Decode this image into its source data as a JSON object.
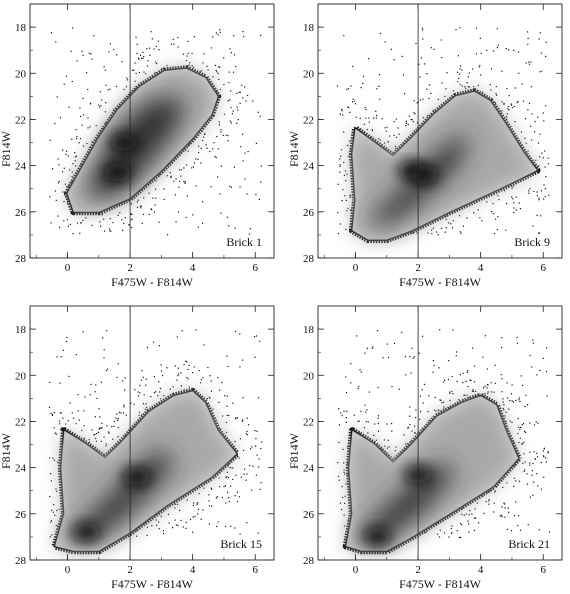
{
  "chart_data": [
    {
      "type": "scatter",
      "panel_label": "Brick 1",
      "xlabel": "F475W - F814W",
      "ylabel": "F814W",
      "xlim": [
        -1.2,
        6.6
      ],
      "ylim": [
        28,
        17
      ],
      "xticks": [
        "0",
        "2",
        "4",
        "6"
      ],
      "yticks": [
        "18",
        "20",
        "22",
        "24",
        "26",
        "28"
      ],
      "vline_x": 2.0,
      "density_shape": {
        "outline": [
          [
            0.2,
            26.0
          ],
          [
            0.0,
            25.2
          ],
          [
            0.5,
            24.0
          ],
          [
            1.0,
            22.8
          ],
          [
            1.6,
            21.6
          ],
          [
            2.3,
            20.6
          ],
          [
            3.1,
            19.9
          ],
          [
            3.8,
            19.8
          ],
          [
            4.4,
            20.2
          ],
          [
            4.8,
            21.0
          ],
          [
            4.6,
            21.8
          ],
          [
            4.0,
            22.8
          ],
          [
            3.0,
            24.2
          ],
          [
            2.0,
            25.4
          ],
          [
            1.0,
            26.0
          ]
        ],
        "core": [
          [
            0.6,
            25.2
          ],
          [
            1.0,
            24.0
          ],
          [
            1.6,
            22.5
          ],
          [
            2.4,
            21.4
          ],
          [
            3.2,
            21.0
          ],
          [
            3.8,
            21.3
          ],
          [
            3.4,
            22.5
          ],
          [
            2.4,
            24.2
          ],
          [
            1.4,
            25.4
          ]
        ],
        "hotspot": [
          [
            1.6,
            24.3
          ],
          [
            1.8,
            23.0
          ]
        ]
      }
    },
    {
      "type": "scatter",
      "panel_label": "Brick 9",
      "xlabel": "F475W - F814W",
      "ylabel": "F814W",
      "xlim": [
        -1.2,
        6.6
      ],
      "ylim": [
        28,
        17
      ],
      "xticks": [
        "0",
        "2",
        "4",
        "6"
      ],
      "yticks": [
        "18",
        "20",
        "22",
        "24",
        "26",
        "28"
      ],
      "vline_x": 2.0,
      "density_shape": {
        "outline": [
          [
            -0.1,
            26.8
          ],
          [
            0.0,
            25.5
          ],
          [
            -0.1,
            23.5
          ],
          [
            0.0,
            22.4
          ],
          [
            0.6,
            23.0
          ],
          [
            1.2,
            23.6
          ],
          [
            1.8,
            22.8
          ],
          [
            2.5,
            21.8
          ],
          [
            3.2,
            21.0
          ],
          [
            3.8,
            20.8
          ],
          [
            4.3,
            21.2
          ],
          [
            4.8,
            22.2
          ],
          [
            5.4,
            23.5
          ],
          [
            5.8,
            24.2
          ],
          [
            4.6,
            25.0
          ],
          [
            3.0,
            26.0
          ],
          [
            1.8,
            26.8
          ],
          [
            1.0,
            27.2
          ],
          [
            0.4,
            27.2
          ]
        ],
        "core": [
          [
            0.4,
            26.4
          ],
          [
            1.2,
            25.4
          ],
          [
            2.0,
            24.2
          ],
          [
            3.0,
            23.0
          ],
          [
            3.6,
            22.6
          ],
          [
            3.4,
            23.8
          ],
          [
            2.2,
            25.4
          ],
          [
            1.0,
            26.6
          ]
        ],
        "hotspot": [
          [
            1.8,
            24.2
          ],
          [
            2.2,
            24.4
          ]
        ]
      }
    },
    {
      "type": "scatter",
      "panel_label": "Brick 15",
      "xlabel": "F475W - F814W",
      "ylabel": "F814W",
      "xlim": [
        -1.2,
        6.6
      ],
      "ylim": [
        28,
        17
      ],
      "xticks": [
        "0",
        "2",
        "4",
        "6"
      ],
      "yticks": [
        "18",
        "20",
        "22",
        "24",
        "26",
        "28"
      ],
      "vline_x": 2.0,
      "density_shape": {
        "outline": [
          [
            -0.4,
            27.4
          ],
          [
            -0.1,
            26.0
          ],
          [
            -0.2,
            24.0
          ],
          [
            -0.1,
            22.4
          ],
          [
            0.6,
            23.0
          ],
          [
            1.2,
            23.6
          ],
          [
            1.8,
            22.8
          ],
          [
            2.6,
            21.6
          ],
          [
            3.4,
            20.9
          ],
          [
            4.0,
            20.7
          ],
          [
            4.4,
            21.2
          ],
          [
            4.8,
            22.4
          ],
          [
            5.4,
            23.4
          ],
          [
            4.6,
            24.4
          ],
          [
            3.2,
            25.6
          ],
          [
            2.0,
            26.8
          ],
          [
            1.0,
            27.6
          ],
          [
            0.2,
            27.6
          ]
        ],
        "core": [
          [
            0.0,
            27.2
          ],
          [
            0.6,
            26.2
          ],
          [
            1.4,
            25.2
          ],
          [
            2.2,
            24.0
          ],
          [
            3.0,
            23.2
          ],
          [
            3.4,
            23.8
          ],
          [
            2.4,
            25.4
          ],
          [
            1.2,
            26.8
          ]
        ],
        "hotspot": [
          [
            2.2,
            24.4
          ],
          [
            0.6,
            26.8
          ]
        ]
      }
    },
    {
      "type": "scatter",
      "panel_label": "Brick 21",
      "xlabel": "F475W - F814W",
      "ylabel": "F814W",
      "xlim": [
        -1.2,
        6.6
      ],
      "ylim": [
        28,
        17
      ],
      "xticks": [
        "0",
        "2",
        "4",
        "6"
      ],
      "yticks": [
        "18",
        "20",
        "22",
        "24",
        "26",
        "28"
      ],
      "vline_x": 2.0,
      "density_shape": {
        "outline": [
          [
            -0.3,
            27.4
          ],
          [
            -0.1,
            26.0
          ],
          [
            -0.2,
            24.0
          ],
          [
            -0.1,
            22.4
          ],
          [
            0.6,
            23.0
          ],
          [
            1.2,
            23.8
          ],
          [
            1.8,
            23.0
          ],
          [
            2.6,
            21.8
          ],
          [
            3.4,
            21.2
          ],
          [
            4.0,
            20.9
          ],
          [
            4.5,
            21.3
          ],
          [
            4.8,
            22.4
          ],
          [
            5.2,
            23.6
          ],
          [
            4.4,
            24.8
          ],
          [
            3.0,
            26.0
          ],
          [
            1.8,
            27.0
          ],
          [
            1.0,
            27.6
          ],
          [
            0.2,
            27.6
          ]
        ],
        "core": [
          [
            0.0,
            27.2
          ],
          [
            0.6,
            26.2
          ],
          [
            1.4,
            25.2
          ],
          [
            2.2,
            24.2
          ],
          [
            2.8,
            23.8
          ],
          [
            3.2,
            24.2
          ],
          [
            2.2,
            25.8
          ],
          [
            1.0,
            27.0
          ]
        ],
        "hotspot": [
          [
            0.7,
            27.0
          ],
          [
            2.0,
            24.3
          ]
        ]
      }
    }
  ]
}
